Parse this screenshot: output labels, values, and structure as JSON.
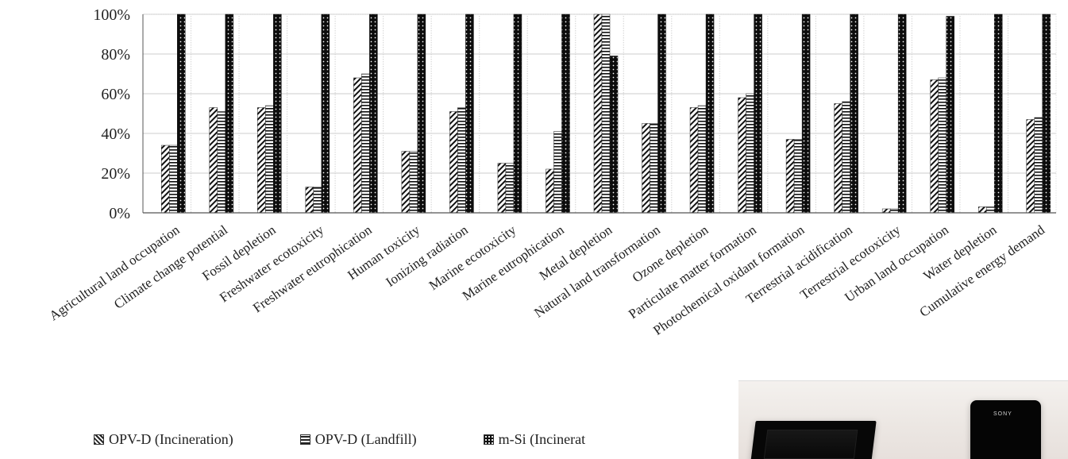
{
  "chart_data": {
    "type": "bar",
    "title": "",
    "xlabel": "",
    "ylabel": "",
    "ylim": [
      0,
      100
    ],
    "yticks": [
      "0%",
      "20%",
      "40%",
      "60%",
      "80%",
      "100%"
    ],
    "categories": [
      "Agricultural land occupation",
      "Climate change potential",
      "Fossil depletion",
      "Freshwater ecotoxicity",
      "Freshwater eutrophication",
      "Human toxicity",
      "Ionizing radiation",
      "Marine ecotoxicity",
      "Marine eutrophication",
      "Metal depletion",
      "Natural land transformation",
      "Ozone depletion",
      "Particulate matter formation",
      "Photochemical oxidant formation",
      "Terrestrial acidification",
      "Terrestrial ecotoxicity",
      "Urban land occupation",
      "Water depletion",
      "Cumulative energy demand"
    ],
    "series": [
      {
        "name": "OPV-D (Incineration)",
        "values": [
          34,
          53,
          53,
          13,
          68,
          31,
          51,
          25,
          22,
          100,
          45,
          53,
          58,
          37,
          55,
          2,
          67,
          3,
          47
        ]
      },
      {
        "name": "OPV-D (Landfill)",
        "values": [
          34,
          51,
          54,
          13,
          70,
          31,
          53,
          25,
          41,
          100,
          45,
          54,
          60,
          37,
          56,
          2,
          68,
          3,
          48
        ]
      },
      {
        "name": "m-Si (Incineration)",
        "values": [
          100,
          100,
          100,
          100,
          100,
          100,
          100,
          100,
          100,
          79,
          100,
          100,
          100,
          100,
          100,
          100,
          99,
          100,
          100
        ]
      }
    ],
    "grid": true,
    "legend_placement": "bottom",
    "colors": {
      "axis": "#555555",
      "grid": "#cccccc",
      "series_dark": "#111111",
      "series_light": "#ffffff"
    }
  },
  "legend": {
    "items": [
      {
        "label": "OPV-D (Incineration)",
        "icon": "diagonal-hatch-swatch-icon"
      },
      {
        "label": "OPV-D (Landfill)",
        "icon": "horizontal-stripe-swatch-icon"
      },
      {
        "label": "m-Si (Incinerat",
        "icon": "dotted-dark-swatch-icon"
      }
    ]
  },
  "photo": {
    "brand": "SONY"
  }
}
